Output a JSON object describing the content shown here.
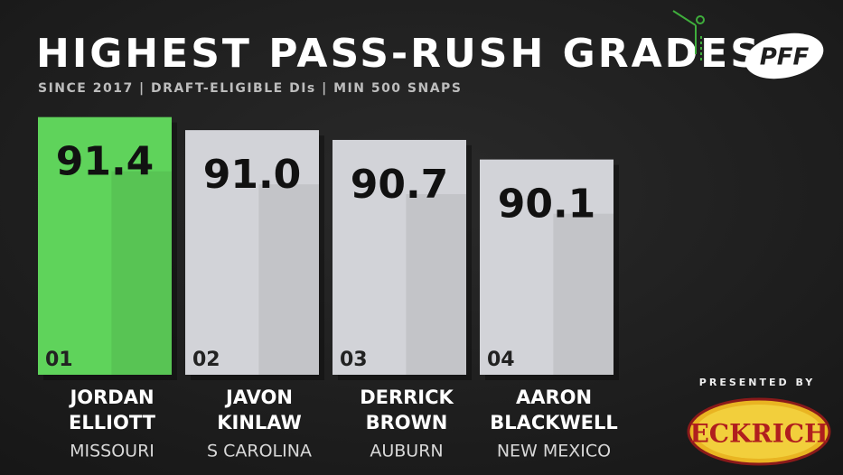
{
  "chart_data": {
    "type": "bar",
    "title": "HIGHEST PASS-RUSH GRADES",
    "subtitle": "SINCE 2017 | DRAFT-ELIGIBLE DIs | MIN 500 SNAPS",
    "ranks": [
      "01",
      "02",
      "03",
      "04"
    ],
    "first_names": [
      "JORDAN",
      "JAVON",
      "DERRICK",
      "AARON"
    ],
    "last_names": [
      "ELLIOTT",
      "KINLAW",
      "BROWN",
      "BLACKWELL"
    ],
    "schools": [
      "MISSOURI",
      "S CAROLINA",
      "AUBURN",
      "NEW MEXICO"
    ],
    "values": [
      91.4,
      91.0,
      90.7,
      90.1
    ],
    "value_labels": [
      "91.4",
      "91.0",
      "90.7",
      "90.1"
    ],
    "colors": [
      "#5fd35b",
      "#d2d3d8",
      "#d2d3d8",
      "#d2d3d8"
    ],
    "ylim": [
      83.5,
      92
    ],
    "logo": "PFF",
    "sponsor_caption": "PRESENTED BY",
    "sponsor": "ECKRICH"
  }
}
